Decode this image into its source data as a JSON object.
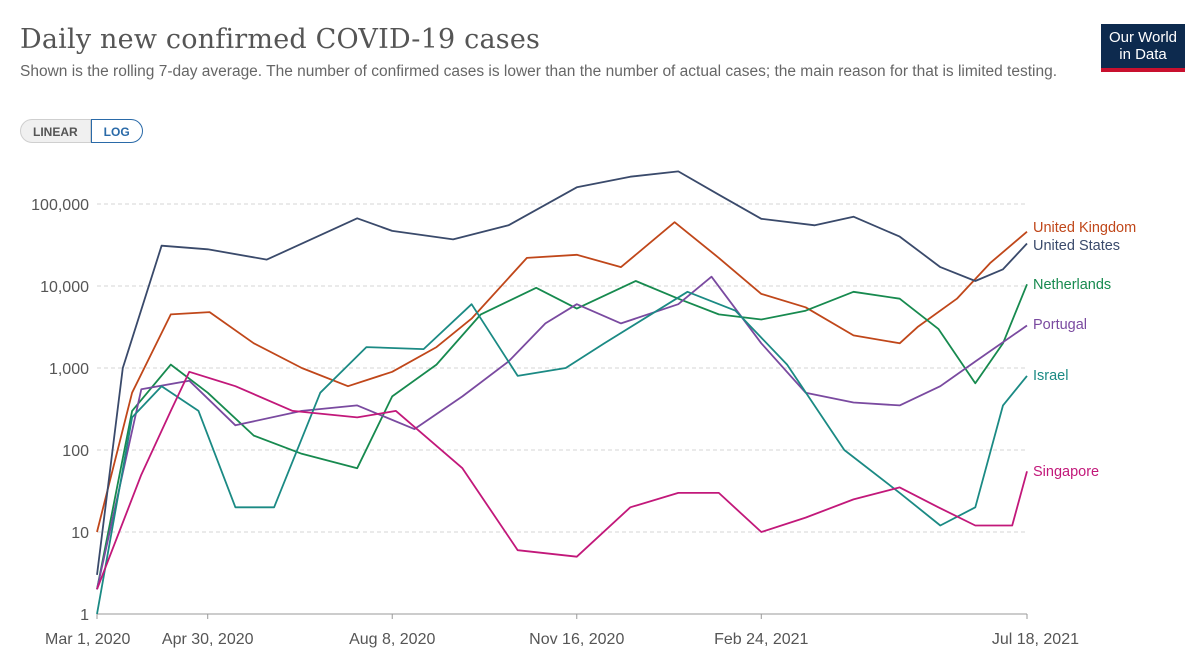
{
  "header": {
    "title": "Daily new confirmed COVID-19 cases",
    "subtitle": "Shown is the rolling 7-day average. The number of confirmed cases is lower than the number of actual cases; the main reason for that is limited testing.",
    "logo_line1": "Our World",
    "logo_line2": "in Data",
    "logo_color": "#0d2a4e",
    "logo_accent": "#c8102e"
  },
  "controls": {
    "linear_label": "LINEAR",
    "log_label": "LOG",
    "selected": "LOG"
  },
  "chart_data": {
    "type": "line",
    "title": "Daily new confirmed COVID-19 cases",
    "yscale": "log",
    "ylim": [
      1,
      300000
    ],
    "y_ticks": [
      1,
      10,
      100,
      1000,
      10000,
      100000
    ],
    "y_tick_labels": [
      "1",
      "10",
      "100",
      "1,000",
      "10,000",
      "100,000"
    ],
    "x_range": [
      "2020-03-01",
      "2021-07-18"
    ],
    "x_ticks": [
      "2020-03-01",
      "2020-04-30",
      "2020-08-08",
      "2020-11-16",
      "2021-02-24",
      "2021-07-18"
    ],
    "x_tick_labels": [
      "Mar 1, 2020",
      "Apr 30, 2020",
      "Aug 8, 2020",
      "Nov 16, 2020",
      "Feb 24, 2021",
      "Jul 18, 2021"
    ],
    "grid": "horizontal dashed",
    "legend": "labels at line ends (right)",
    "series": [
      {
        "name": "United Kingdom",
        "color": "#c0471a",
        "x": [
          "2020-03-01",
          "2020-03-20",
          "2020-04-10",
          "2020-05-01",
          "2020-05-25",
          "2020-06-20",
          "2020-07-15",
          "2020-08-08",
          "2020-09-01",
          "2020-09-20",
          "2020-10-20",
          "2020-11-16",
          "2020-12-10",
          "2021-01-08",
          "2021-02-01",
          "2021-02-24",
          "2021-03-20",
          "2021-04-15",
          "2021-05-10",
          "2021-05-20",
          "2021-06-10",
          "2021-06-28",
          "2021-07-18"
        ],
        "y": [
          10,
          500,
          4500,
          4800,
          2000,
          1000,
          600,
          900,
          1800,
          4000,
          22000,
          24000,
          17000,
          60000,
          22000,
          8000,
          5500,
          2500,
          2000,
          3200,
          7000,
          19000,
          46000
        ]
      },
      {
        "name": "United States",
        "color": "#3a4a6b",
        "x": [
          "2020-03-01",
          "2020-03-15",
          "2020-04-05",
          "2020-04-30",
          "2020-06-01",
          "2020-07-20",
          "2020-08-08",
          "2020-09-10",
          "2020-10-10",
          "2020-11-16",
          "2020-12-15",
          "2021-01-10",
          "2021-02-01",
          "2021-02-24",
          "2021-03-25",
          "2021-04-15",
          "2021-05-10",
          "2021-06-01",
          "2021-06-20",
          "2021-07-05",
          "2021-07-18"
        ],
        "y": [
          3,
          1000,
          31000,
          28000,
          21000,
          67000,
          47000,
          37000,
          55000,
          160000,
          215000,
          250000,
          130000,
          66000,
          55000,
          70000,
          40000,
          17000,
          11500,
          16000,
          33000
        ]
      },
      {
        "name": "Netherlands",
        "color": "#178a4f",
        "x": [
          "2020-03-01",
          "2020-03-20",
          "2020-04-10",
          "2020-04-30",
          "2020-05-25",
          "2020-06-20",
          "2020-07-20",
          "2020-08-08",
          "2020-09-01",
          "2020-09-25",
          "2020-10-25",
          "2020-11-16",
          "2020-12-18",
          "2021-01-10",
          "2021-02-01",
          "2021-02-24",
          "2021-03-20",
          "2021-04-15",
          "2021-05-10",
          "2021-05-31",
          "2021-06-20",
          "2021-07-05",
          "2021-07-18"
        ],
        "y": [
          2,
          300,
          1100,
          500,
          150,
          90,
          60,
          450,
          1100,
          4500,
          9500,
          5300,
          11500,
          7000,
          4500,
          3900,
          5000,
          8500,
          7000,
          3000,
          650,
          2000,
          10500
        ]
      },
      {
        "name": "Portugal",
        "color": "#7a4aa0",
        "x": [
          "2020-03-01",
          "2020-03-25",
          "2020-04-20",
          "2020-05-15",
          "2020-06-20",
          "2020-07-20",
          "2020-08-20",
          "2020-09-15",
          "2020-10-10",
          "2020-10-30",
          "2020-11-16",
          "2020-12-10",
          "2021-01-10",
          "2021-01-28",
          "2021-02-24",
          "2021-03-20",
          "2021-04-15",
          "2021-05-10",
          "2021-06-01",
          "2021-06-20",
          "2021-07-18"
        ],
        "y": [
          2,
          550,
          700,
          200,
          300,
          350,
          180,
          450,
          1200,
          3500,
          6000,
          3500,
          6000,
          13000,
          2000,
          500,
          380,
          350,
          600,
          1200,
          3300
        ]
      },
      {
        "name": "Israel",
        "color": "#1b8a84",
        "x": [
          "2020-03-01",
          "2020-03-20",
          "2020-04-05",
          "2020-04-25",
          "2020-05-15",
          "2020-06-05",
          "2020-06-30",
          "2020-07-25",
          "2020-08-25",
          "2020-09-20",
          "2020-10-15",
          "2020-11-10",
          "2020-12-01",
          "2021-01-15",
          "2021-02-10",
          "2021-03-10",
          "2021-04-10",
          "2021-05-10",
          "2021-06-01",
          "2021-06-20",
          "2021-07-05",
          "2021-07-18"
        ],
        "y": [
          1,
          250,
          600,
          300,
          20,
          20,
          500,
          1800,
          1700,
          6000,
          800,
          1000,
          2000,
          8500,
          5000,
          1100,
          100,
          30,
          12,
          20,
          350,
          800
        ]
      },
      {
        "name": "Singapore",
        "color": "#c2187a",
        "x": [
          "2020-03-01",
          "2020-03-25",
          "2020-04-10",
          "2020-04-20",
          "2020-05-15",
          "2020-06-15",
          "2020-07-20",
          "2020-08-10",
          "2020-09-15",
          "2020-10-15",
          "2020-11-16",
          "2020-12-15",
          "2021-01-10",
          "2021-02-01",
          "2021-02-24",
          "2021-03-20",
          "2021-04-15",
          "2021-05-10",
          "2021-05-31",
          "2021-06-20",
          "2021-07-10",
          "2021-07-18"
        ],
        "y": [
          2,
          50,
          300,
          900,
          600,
          300,
          250,
          300,
          60,
          6,
          5,
          20,
          30,
          30,
          10,
          15,
          25,
          35,
          20,
          12,
          12,
          55
        ]
      }
    ]
  }
}
